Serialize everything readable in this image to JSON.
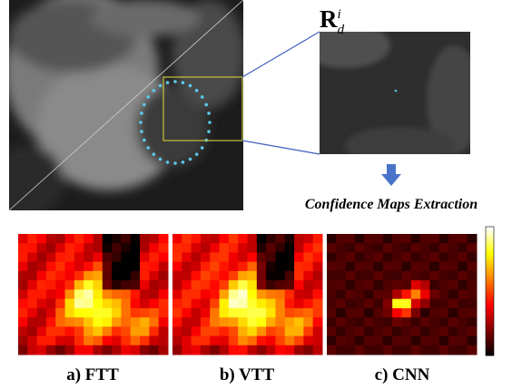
{
  "zoom_label": {
    "base": "R",
    "sub": "d",
    "sup": "i"
  },
  "step_caption": "Confidence Maps Extraction",
  "panels": [
    {
      "label": "a) FTT"
    },
    {
      "label": "b) VTT"
    },
    {
      "label": "c) CNN"
    }
  ]
}
